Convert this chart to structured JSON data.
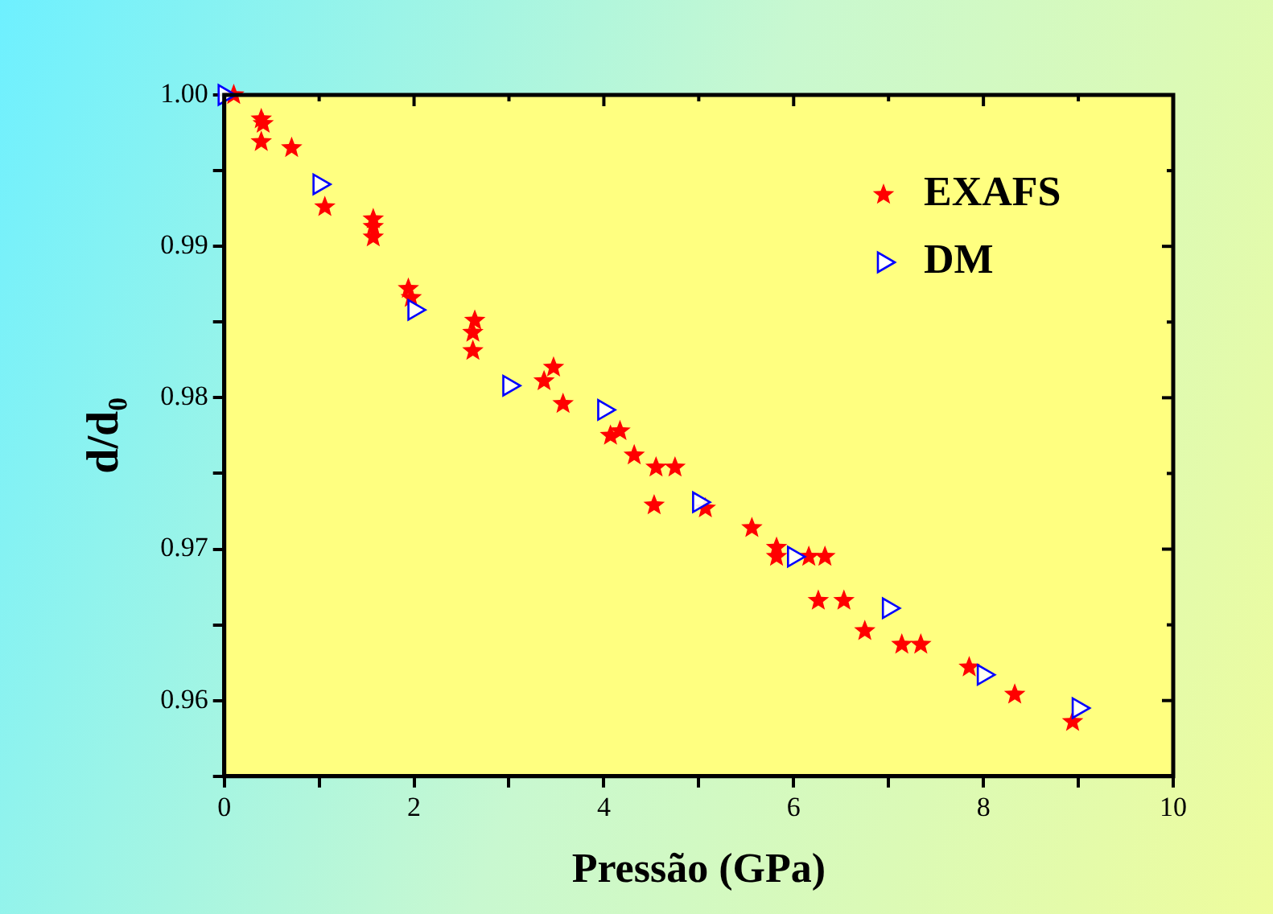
{
  "chart_data": {
    "type": "scatter",
    "xlabel": "Pressão (GPa)",
    "ylabel": "d/d₀",
    "xlim": [
      0,
      10
    ],
    "ylim": [
      0.955,
      1.0
    ],
    "xticks": [
      0,
      {
        "value": 1,
        "label": null
      },
      2,
      {
        "value": 3,
        "label": null
      },
      4,
      {
        "value": 5,
        "label": null
      },
      6,
      {
        "value": 7,
        "label": null
      },
      8,
      {
        "value": 9,
        "label": null
      },
      10
    ],
    "yticks": [
      {
        "value": 0.955,
        "label": null
      },
      0.96,
      {
        "value": 0.965,
        "label": null
      },
      0.97,
      {
        "value": 0.975,
        "label": null
      },
      0.98,
      {
        "value": 0.985,
        "label": null
      },
      0.99,
      {
        "value": 0.995,
        "label": null
      },
      {
        "value": 1.0,
        "label": "1.00"
      }
    ],
    "legend": "top right",
    "grid": false,
    "series": [
      {
        "name": "EXAFS",
        "color": "#ff0000",
        "marker": "star",
        "x": [
          0.1,
          0.39,
          0.41,
          0.39,
          0.71,
          1.06,
          1.57,
          1.57,
          1.57,
          1.94,
          1.97,
          2.64,
          2.62,
          2.62,
          3.47,
          3.37,
          3.57,
          4.17,
          4.07,
          4.32,
          4.55,
          4.75,
          4.53,
          5.07,
          5.56,
          5.82,
          5.82,
          6.16,
          6.33,
          6.26,
          6.53,
          6.75,
          7.14,
          7.34,
          7.85,
          8.33,
          8.94
        ],
        "values": [
          1.0,
          0.9984,
          0.9981,
          0.9969,
          0.9965,
          0.9926,
          0.9918,
          0.9913,
          0.9906,
          0.9872,
          0.9866,
          0.9851,
          0.9843,
          0.9831,
          0.982,
          0.9811,
          0.9796,
          0.9778,
          0.9775,
          0.9762,
          0.9754,
          0.9754,
          0.9729,
          0.9727,
          0.9714,
          0.9701,
          0.9695,
          0.9695,
          0.9695,
          0.9666,
          0.9666,
          0.9646,
          0.9637,
          0.9637,
          0.9622,
          0.9604,
          0.9586
        ]
      },
      {
        "name": "DM",
        "color": "#0000ff",
        "marker": "triangle",
        "x": [
          0,
          1,
          2,
          3,
          4,
          5,
          6,
          7,
          8,
          9
        ],
        "values": [
          1.0,
          0.9941,
          0.9858,
          0.9808,
          0.9792,
          0.9731,
          0.9695,
          0.9661,
          0.9617,
          0.9595
        ]
      }
    ]
  }
}
